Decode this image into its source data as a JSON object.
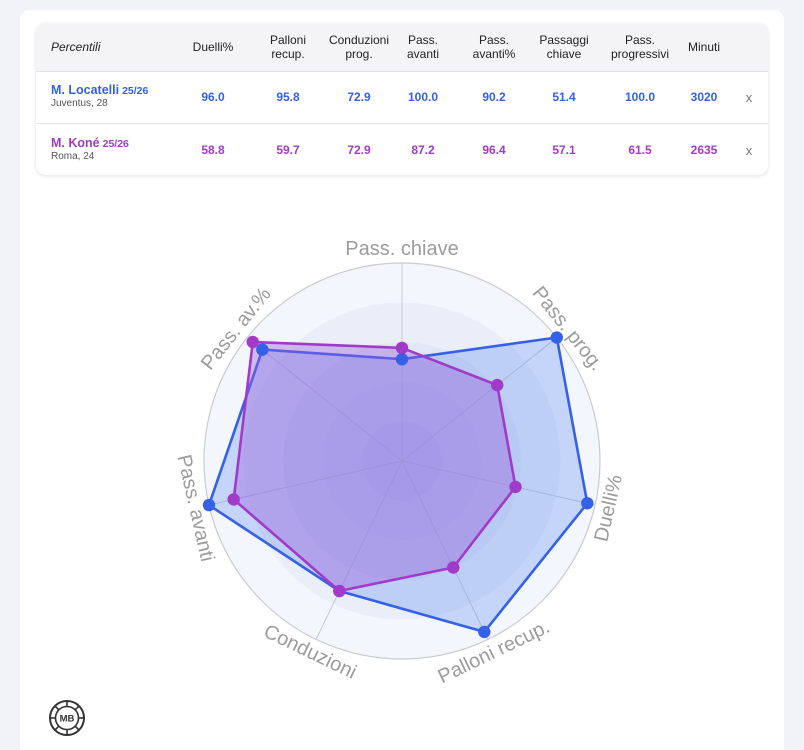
{
  "table": {
    "header_label": "Percentili",
    "columns": [
      "Duelli%",
      "Palloni\nrecup.",
      "Conduzioni\nprog.",
      "Pass.\navanti",
      "Pass.\navanti%",
      "Passaggi\nchiave",
      "Pass.\nprogressivi",
      "Minuti"
    ],
    "rows": [
      {
        "name": "M. Locatelli",
        "season": "25/26",
        "team_age": "Juventus, 28",
        "values": [
          "96.0",
          "95.8",
          "72.9",
          "100.0",
          "90.2",
          "51.4",
          "100.0",
          "3020"
        ],
        "remove_label": "x",
        "color": "#3560e8"
      },
      {
        "name": "M. Koné",
        "season": "25/26",
        "team_age": "Roma, 24",
        "values": [
          "58.8",
          "59.7",
          "72.9",
          "87.2",
          "96.4",
          "57.1",
          "61.5",
          "2635"
        ],
        "remove_label": "x",
        "color": "#a13ac9"
      }
    ]
  },
  "logo": {
    "text": "MB"
  },
  "chart_data": {
    "type": "radar",
    "axes": [
      "Pass. chiave",
      "Pass. prog.",
      "Duelli%",
      "Palloni recup.",
      "Conduzioni",
      "Pass. avanti",
      "Pass. av.%"
    ],
    "range": [
      0,
      100
    ],
    "series": [
      {
        "name": "M. Locatelli",
        "color": "#3560e8",
        "values": [
          51.4,
          100.0,
          96.0,
          95.8,
          72.9,
          100.0,
          90.2
        ]
      },
      {
        "name": "M. Koné",
        "color": "#a13ac9",
        "values": [
          57.1,
          61.5,
          58.8,
          59.7,
          72.9,
          87.2,
          96.4
        ]
      }
    ]
  }
}
